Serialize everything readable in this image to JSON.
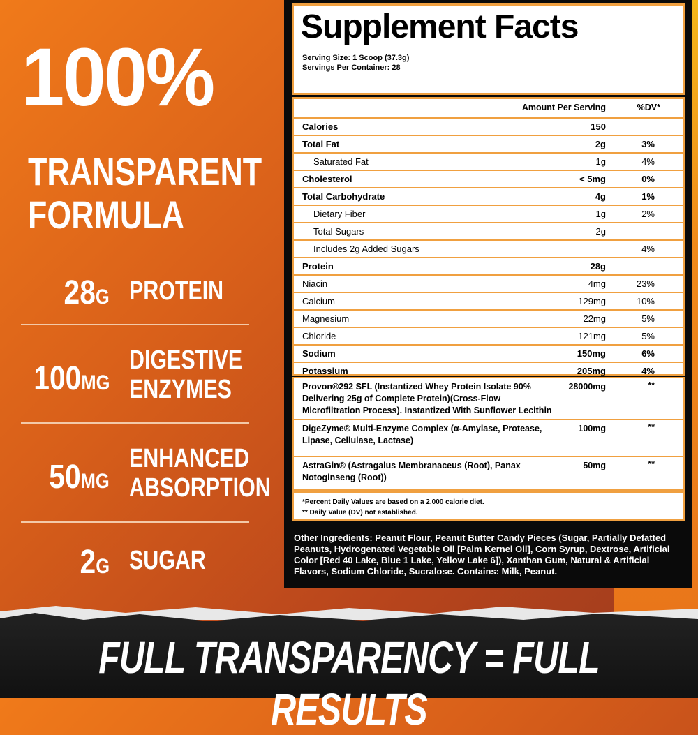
{
  "headline": {
    "big": "100%",
    "line1": "TRANSPARENT",
    "line2": "FORMULA"
  },
  "stats": [
    {
      "num": "28",
      "unit": "G",
      "label1": "PROTEIN",
      "label2": ""
    },
    {
      "num": "100",
      "unit": "MG",
      "label1": "DIGESTIVE",
      "label2": "ENZYMES"
    },
    {
      "num": "50",
      "unit": "MG",
      "label1": "ENHANCED",
      "label2": "ABSORPTION"
    },
    {
      "num": "2",
      "unit": "G",
      "label1": "SUGAR",
      "label2": ""
    }
  ],
  "facts": {
    "title": "Supplement Facts",
    "serving_size": "Serving Size: 1 Scoop (37.3g)",
    "servings": "Servings Per Container: 28",
    "amount_header": "Amount Per Serving",
    "dv_header": "%DV*",
    "rows": [
      {
        "name": "Calories",
        "amount": "150",
        "dv": "",
        "bold": true
      },
      {
        "name": "Total Fat",
        "amount": "2g",
        "dv": "3%",
        "bold": true
      },
      {
        "name": "Saturated Fat",
        "amount": "1g",
        "dv": "4%",
        "indent": true
      },
      {
        "name": "Cholesterol",
        "amount": "< 5mg",
        "dv": "0%",
        "bold": true
      },
      {
        "name": "Total Carbohydrate",
        "amount": "4g",
        "dv": "1%",
        "bold": true
      },
      {
        "name": "Dietary Fiber",
        "amount": "1g",
        "dv": "2%",
        "indent": true
      },
      {
        "name": "Total Sugars",
        "amount": "2g",
        "dv": "",
        "indent": true
      },
      {
        "name": "Includes 2g Added Sugars",
        "amount": "",
        "dv": "4%",
        "indent": true
      },
      {
        "name": "Protein",
        "amount": "28g",
        "dv": "",
        "bold": true
      },
      {
        "name": "Niacin",
        "amount": "4mg",
        "dv": "23%"
      },
      {
        "name": "Calcium",
        "amount": "129mg",
        "dv": "10%"
      },
      {
        "name": "Magnesium",
        "amount": "22mg",
        "dv": "5%"
      },
      {
        "name": "Chloride",
        "amount": "121mg",
        "dv": "5%"
      },
      {
        "name": "Sodium",
        "amount": "150mg",
        "dv": "6%",
        "bold": true
      },
      {
        "name": "Potassium",
        "amount": "205mg",
        "dv": "4%",
        "bold": true
      }
    ],
    "ingredients": [
      {
        "name": "Provon®292 SFL (Instantized Whey Protein Isolate 90% Delivering 25g of Complete Protein)(Cross-Flow Microfiltration Process). Instantized With Sunflower Lecithin",
        "amount": "28000mg",
        "dv": "**"
      },
      {
        "name": "DigeZyme® Multi-Enzyme Complex (α-Amylase, Protease, Lipase, Cellulase, Lactase)",
        "amount": "100mg",
        "dv": "**"
      },
      {
        "name": "AstraGin® (Astragalus Membranaceus (Root), Panax Notoginseng (Root))",
        "amount": "50mg",
        "dv": "**"
      }
    ],
    "footnote1": "*Percent Daily Values are based on a 2,000 calorie diet.",
    "footnote2": "** Daily Value (DV) not established.",
    "other": "Other Ingredients: Peanut Flour, Peanut Butter Candy Pieces (Sugar, Partially Defatted Peanuts, Hydrogenated Vegetable Oil [Palm Kernel Oil], Corn Syrup, Dextrose, Artificial Color [Red 40 Lake, Blue 1 Lake, Yellow Lake 6]), Xanthan Gum, Natural & Artificial Flavors, Sodium Chloride, Sucralose. Contains: Milk, Peanut."
  },
  "tagline": "FULL TRANSPARENCY = FULL RESULTS",
  "colors": {
    "accent": "#f0a040",
    "bg_orange": "#d9601a",
    "panel": "#0a0a0a"
  }
}
